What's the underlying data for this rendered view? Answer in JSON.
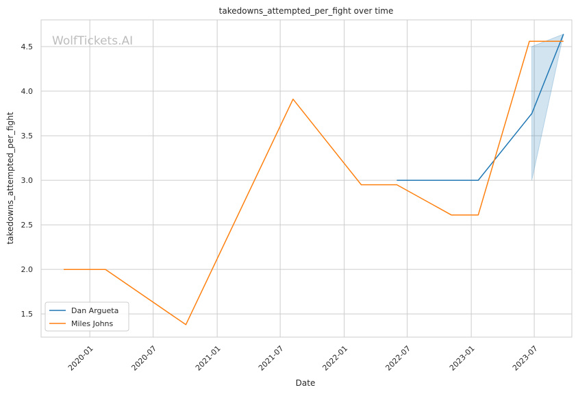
{
  "chart_data": {
    "type": "line",
    "title": "takedowns_attempted_per_fight over time",
    "xlabel": "Date",
    "ylabel": "takedowns_attempted_per_fight",
    "watermark": "WolfTickets.AI",
    "x_ticks": [
      "2020-01",
      "2020-07",
      "2021-01",
      "2021-07",
      "2022-01",
      "2022-07",
      "2023-01",
      "2023-07"
    ],
    "y_ticks": [
      "1.5",
      "2.0",
      "2.5",
      "3.0",
      "3.5",
      "4.0",
      "4.5"
    ],
    "xlim": [
      "2019-08-14",
      "2023-10-17"
    ],
    "ylim": [
      1.24,
      4.8
    ],
    "grid": true,
    "legend_position": "bottom-left",
    "series": [
      {
        "name": "Dan Argueta",
        "color": "#1f77b4",
        "points": [
          {
            "x": "2022-06-01",
            "y": 3.0
          },
          {
            "x": "2023-01-21",
            "y": 3.0
          },
          {
            "x": "2023-06-24",
            "y": 3.75
          },
          {
            "x": "2023-09-23",
            "y": 4.64
          }
        ],
        "band": [
          {
            "x": "2023-06-24",
            "lower": 3.0,
            "upper": 4.5
          },
          {
            "x": "2023-09-23",
            "lower": 4.64,
            "upper": 4.64
          }
        ]
      },
      {
        "name": "Miles Johns",
        "color": "#ff7f0e",
        "points": [
          {
            "x": "2019-10-18",
            "y": 2.0
          },
          {
            "x": "2020-02-15",
            "y": 2.0
          },
          {
            "x": "2020-10-03",
            "y": 1.38
          },
          {
            "x": "2021-08-07",
            "y": 3.91
          },
          {
            "x": "2022-02-19",
            "y": 2.95
          },
          {
            "x": "2022-06-01",
            "y": 2.95
          },
          {
            "x": "2022-11-05",
            "y": 2.61
          },
          {
            "x": "2023-01-21",
            "y": 2.61
          },
          {
            "x": "2023-06-17",
            "y": 4.56
          },
          {
            "x": "2023-09-23",
            "y": 4.56
          }
        ]
      }
    ]
  }
}
